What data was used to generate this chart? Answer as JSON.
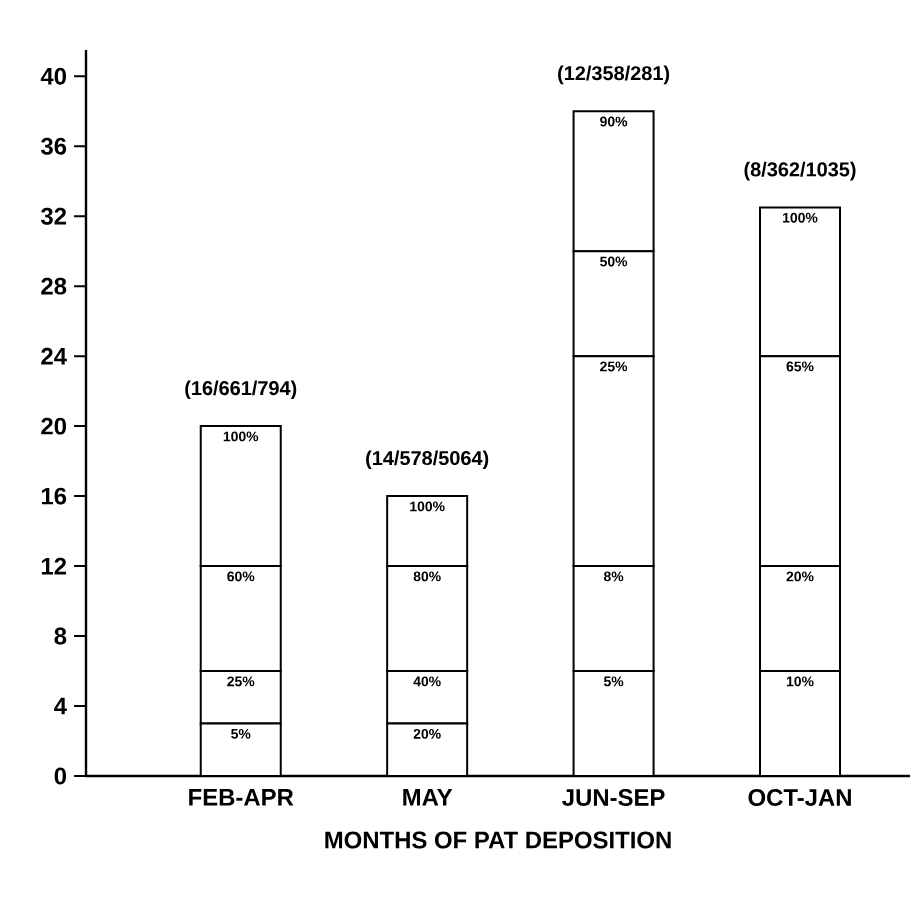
{
  "chart_data": {
    "type": "bar",
    "stacked": true,
    "xlabel": "MONTHS OF PAT DEPOSITION",
    "categories": [
      "FEB-APR",
      "MAY",
      "JUN-SEP",
      "OCT-JAN"
    ],
    "series": [
      {
        "color": "#ffffff",
        "values": [
          3,
          3,
          6,
          6
        ]
      },
      {
        "color": "#ffffff",
        "values": [
          3,
          3,
          6,
          6
        ]
      },
      {
        "color": "#ffffff",
        "values": [
          6,
          6,
          12,
          12
        ]
      },
      {
        "color": "#ffffff",
        "values": [
          8,
          4,
          6,
          8.5
        ]
      },
      {
        "color": "#ffffff",
        "values": [
          null,
          null,
          8,
          null
        ]
      }
    ],
    "annotations": [
      {
        "text": "5%",
        "x": "FEB-APR",
        "y": 3
      },
      {
        "text": "25%",
        "x": "FEB-APR",
        "y": 6
      },
      {
        "text": "60%",
        "x": "FEB-APR",
        "y": 12
      },
      {
        "text": "100%",
        "x": "FEB-APR",
        "y": 20
      },
      {
        "text": "(16/661/794)",
        "x": "FEB-APR",
        "y": 20
      },
      {
        "text": "20%",
        "x": "MAY",
        "y": 3
      },
      {
        "text": "40%",
        "x": "MAY",
        "y": 6
      },
      {
        "text": "80%",
        "x": "MAY",
        "y": 12
      },
      {
        "text": "100%",
        "x": "MAY",
        "y": 16
      },
      {
        "text": "(14/578/5064)",
        "x": "MAY",
        "y": 16
      },
      {
        "text": "5%",
        "x": "JUN-SEP",
        "y": 6
      },
      {
        "text": "8%",
        "x": "JUN-SEP",
        "y": 12
      },
      {
        "text": "25%",
        "x": "JUN-SEP",
        "y": 24
      },
      {
        "text": "50%",
        "x": "JUN-SEP",
        "y": 30
      },
      {
        "text": "90%",
        "x": "JUN-SEP",
        "y": 38
      },
      {
        "text": "(12/358/281)",
        "x": "JUN-SEP",
        "y": 38
      },
      {
        "text": "10%",
        "x": "OCT-JAN",
        "y": 6
      },
      {
        "text": "20%",
        "x": "OCT-JAN",
        "y": 12
      },
      {
        "text": "65%",
        "x": "OCT-JAN",
        "y": 24
      },
      {
        "text": "100%",
        "x": "OCT-JAN",
        "y": 32.5
      },
      {
        "text": "(8/362/1035)",
        "x": "OCT-JAN",
        "y": 32.5
      }
    ],
    "ylim": [
      0,
      41.5
    ],
    "yticks": [
      0,
      4,
      8,
      12,
      16,
      20,
      24,
      28,
      32,
      36,
      40
    ]
  }
}
